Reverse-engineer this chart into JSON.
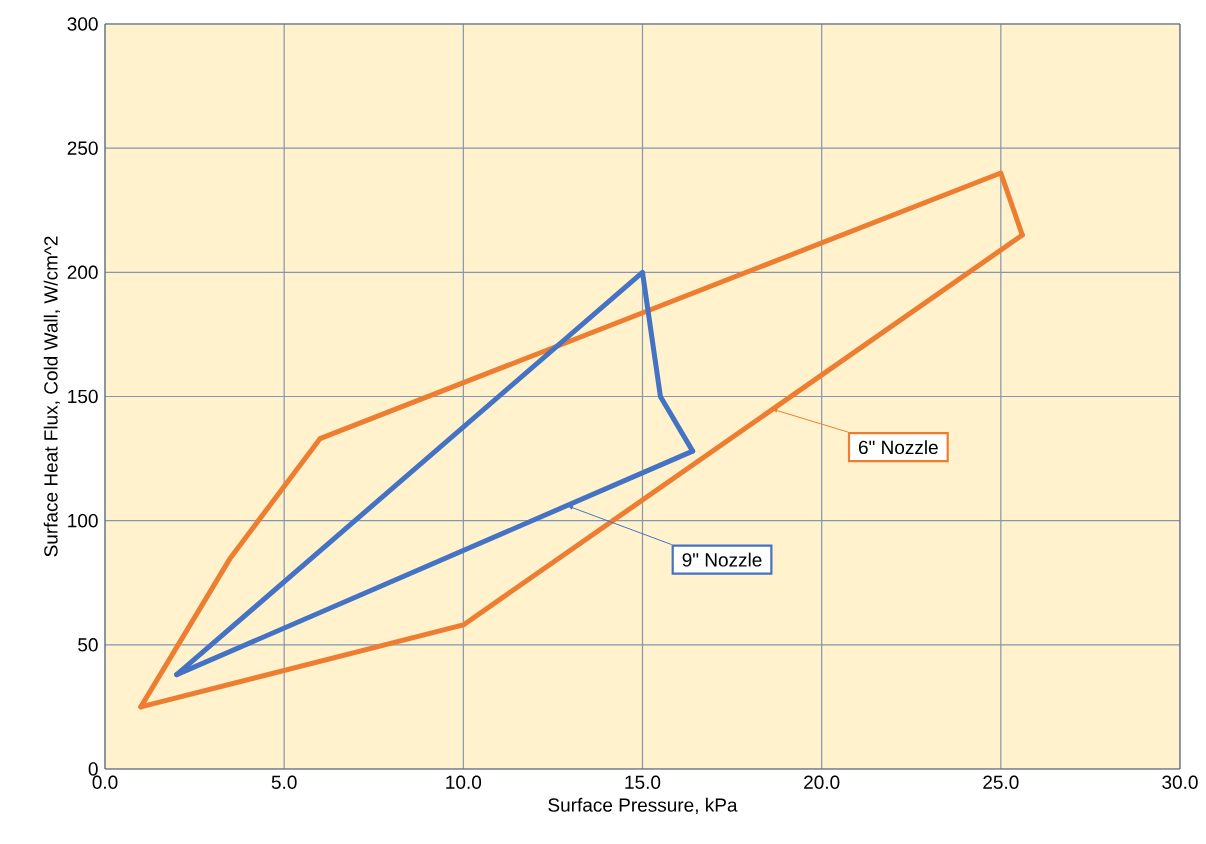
{
  "chart_data": {
    "type": "line",
    "xlabel": "Surface Pressure, kPa",
    "ylabel": "Surface Heat Flux, Cold Wall, W/cm^2",
    "xlim": [
      0,
      30
    ],
    "ylim": [
      0,
      300
    ],
    "xticks": [
      {
        "value": 0,
        "label": "0.0"
      },
      {
        "value": 5,
        "label": "5.0"
      },
      {
        "value": 10,
        "label": "10.0"
      },
      {
        "value": 15,
        "label": "15.0"
      },
      {
        "value": 20,
        "label": "20.0"
      },
      {
        "value": 25,
        "label": "25.0"
      },
      {
        "value": 30,
        "label": "30.0"
      }
    ],
    "yticks": [
      0,
      50,
      100,
      150,
      200,
      250,
      300
    ],
    "grid": true,
    "marker": "none",
    "line_style": "solid",
    "series": [
      {
        "color": "#ed7d31",
        "x": [
          1,
          3.5,
          6,
          25,
          25.6
        ],
        "values": [
          25,
          85,
          133,
          240,
          215
        ]
      },
      {
        "color": "#ed7d31",
        "x": [
          1,
          10,
          25.6
        ],
        "values": [
          25,
          58,
          215
        ]
      },
      {
        "color": "#4472c4",
        "x": [
          2,
          15,
          15.5,
          16.4
        ],
        "values": [
          38,
          200,
          150,
          128
        ]
      },
      {
        "color": "#4472c4",
        "x": [
          2,
          16.4
        ],
        "values": [
          38,
          128
        ]
      }
    ],
    "annotations": [
      {
        "text": "6\" Nozzle",
        "x": 18.6,
        "y": 145
      },
      {
        "text": "9\" Nozzle",
        "x": 12.9,
        "y": 106
      }
    ]
  }
}
